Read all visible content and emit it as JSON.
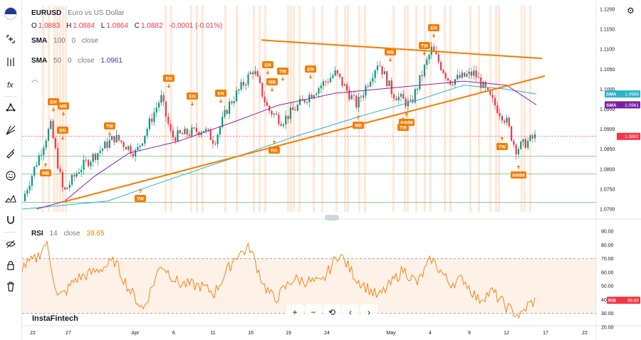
{
  "symbol": {
    "ticker": "EURUSD",
    "description": "Euro vs US Dollar",
    "ohlc": [
      {
        "k": "O",
        "v": "1.0883"
      },
      {
        "k": "H",
        "v": "1.0884"
      },
      {
        "k": "L",
        "v": "1.0864"
      },
      {
        "k": "C",
        "v": "1.0882"
      }
    ],
    "change": "-0.0001 (-0.01%)"
  },
  "indicators": {
    "sma100": {
      "name": "SMA",
      "length": "100",
      "offset": "0",
      "source": "close",
      "color": "#27b3c9"
    },
    "sma50": {
      "name": "SMA",
      "length": "50",
      "offset": "0",
      "source": "close",
      "value": "1.0961",
      "color": "#8e24aa"
    }
  },
  "rsi": {
    "name": "RSI",
    "length": "14",
    "source": "close",
    "value": "39.65",
    "color": "#f57c00",
    "levels": [
      "70.00",
      "30.00"
    ]
  },
  "price_axis": {
    "labels": [
      "1.1200",
      "1.1150",
      "1.1100",
      "1.1050",
      "1.1000",
      "1.0950",
      "1.0900",
      "1.0850",
      "1.0800",
      "1.0750",
      "1.0700"
    ],
    "sma100_tag": {
      "label": "SMA",
      "value": "1.0988"
    },
    "sma50_tag": {
      "label": "SMA",
      "value": "1.0961"
    },
    "last_price": "1.0882"
  },
  "rsi_axis": {
    "labels": [
      "90.00",
      "80.00",
      "70.00",
      "60.00",
      "50.00",
      "40.00",
      "30.00",
      "20.00"
    ],
    "tag": {
      "label": "RSI",
      "value": "39.65"
    }
  },
  "time_axis": {
    "labels": [
      {
        "t": "22",
        "x": 0
      },
      {
        "t": "27",
        "x": 1
      },
      {
        "t": "Apr",
        "x": 2
      },
      {
        "t": "6",
        "x": 3
      },
      {
        "t": "11",
        "x": 4
      },
      {
        "t": "16",
        "x": 5
      },
      {
        "t": "19",
        "x": 6
      },
      {
        "t": "24",
        "x": 7
      },
      {
        "t": "May",
        "x": 8
      },
      {
        "t": "4",
        "x": 9
      },
      {
        "t": "9",
        "x": 10
      },
      {
        "t": "12",
        "x": 11
      },
      {
        "t": "17",
        "x": 12
      },
      {
        "t": "22",
        "x": 13
      }
    ]
  },
  "pattern_labels": [
    {
      "text": "EN",
      "dir": "down"
    },
    {
      "text": "MB",
      "dir": "down"
    },
    {
      "text": "EN",
      "dir": "down"
    },
    {
      "text": "MB",
      "dir": "up"
    },
    {
      "text": "TW",
      "dir": "down"
    },
    {
      "text": "TW",
      "dir": "up"
    },
    {
      "text": "EN",
      "dir": "down"
    },
    {
      "text": "EN",
      "dir": "down"
    },
    {
      "text": "EN",
      "dir": "down"
    },
    {
      "text": "EN",
      "dir": "down"
    },
    {
      "text": "MB",
      "dir": "down"
    },
    {
      "text": "TW",
      "dir": "down"
    },
    {
      "text": "HA",
      "dir": "up"
    },
    {
      "text": "EN",
      "dir": "down"
    },
    {
      "text": "MB",
      "dir": "up"
    },
    {
      "text": "MB",
      "dir": "down"
    },
    {
      "text": "TW",
      "dir": "down"
    },
    {
      "text": "EN",
      "dir": "down"
    },
    {
      "text": "IHMM",
      "dir": "up"
    },
    {
      "text": "TW",
      "dir": "up"
    },
    {
      "text": "IHMM",
      "dir": "up"
    },
    {
      "text": "TW",
      "dir": "up"
    }
  ],
  "brand": "InstaFintech",
  "controls": [
    "+",
    "−",
    "⟲",
    "‹",
    "›"
  ],
  "toolbar_icons": [
    "flag-icon",
    "crosshair-icon",
    "trendline-icon",
    "fib-icon",
    "shapes-icon",
    "brush-icon",
    "emoji-icon",
    "measure-icon",
    "magnet-icon",
    "eye-icon",
    "lock-icon",
    "trash-icon"
  ],
  "colors": {
    "up": "#089981",
    "down": "#f23645",
    "pattern": "#f57c00",
    "highlight": "#ffe0cc",
    "accent": "#2962ff"
  }
}
